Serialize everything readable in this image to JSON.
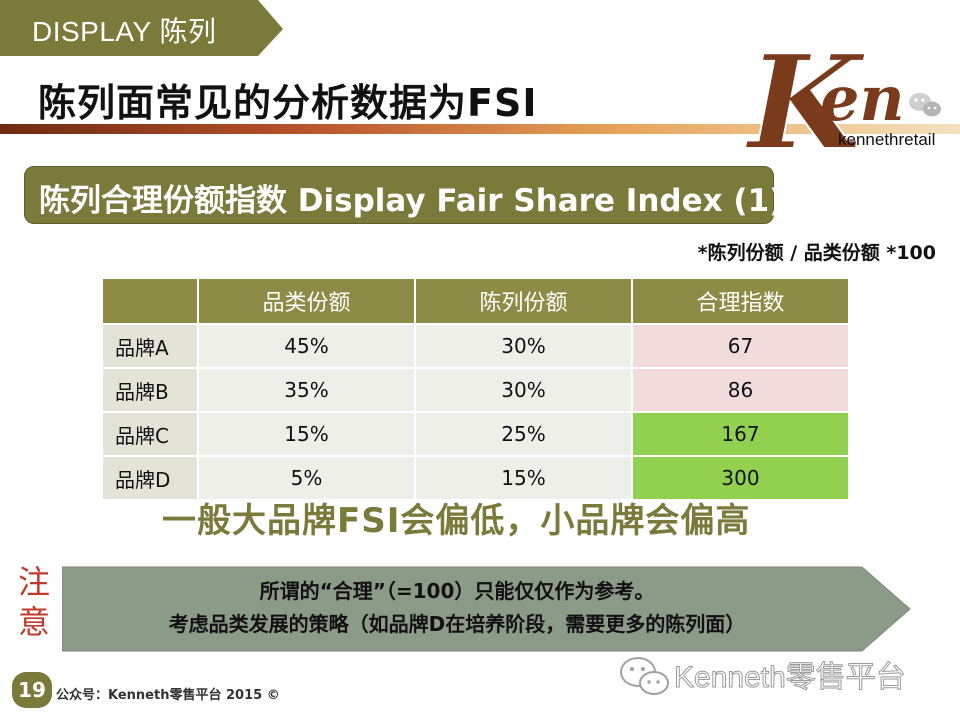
{
  "header": {
    "section_tag": "DISPLAY 陈列",
    "title": "陈列面常见的分析数据为FSI"
  },
  "logo": {
    "mark": "Ken",
    "handle": "kennethretail"
  },
  "subtitle": "陈列合理份额指数 Display Fair Share Index (1)",
  "formula": "*陈列份额 / 品类份额 *100",
  "table": {
    "headers": [
      "",
      "品类份额",
      "陈列份额",
      "合理指数"
    ],
    "rows": [
      {
        "brand": "品牌A",
        "category_share": "45%",
        "display_share": "30%",
        "index": "67"
      },
      {
        "brand": "品牌B",
        "category_share": "35%",
        "display_share": "30%",
        "index": "86"
      },
      {
        "brand": "品牌C",
        "category_share": "15%",
        "display_share": "25%",
        "index": "167"
      },
      {
        "brand": "品牌D",
        "category_share": "5%",
        "display_share": "15%",
        "index": "300"
      }
    ]
  },
  "conclusion": "一般大品牌FSI会偏低，小品牌会偏高",
  "note": {
    "label": "注意",
    "line1": "所谓的“合理”（=100）只能仅仅作为参考。",
    "line2": "考虑品类发展的策略（如品牌D在培养阶段，需要更多的陈列面）"
  },
  "footer": {
    "page_number": "19",
    "text": "公众号：Kenneth零售平台 2015 ©"
  },
  "watermark": "Kenneth零售平台",
  "colors": {
    "olive": "#7a7a3a",
    "low_index": "#f2dcdb",
    "high_index": "#92d050",
    "note_red": "#c0392b"
  }
}
